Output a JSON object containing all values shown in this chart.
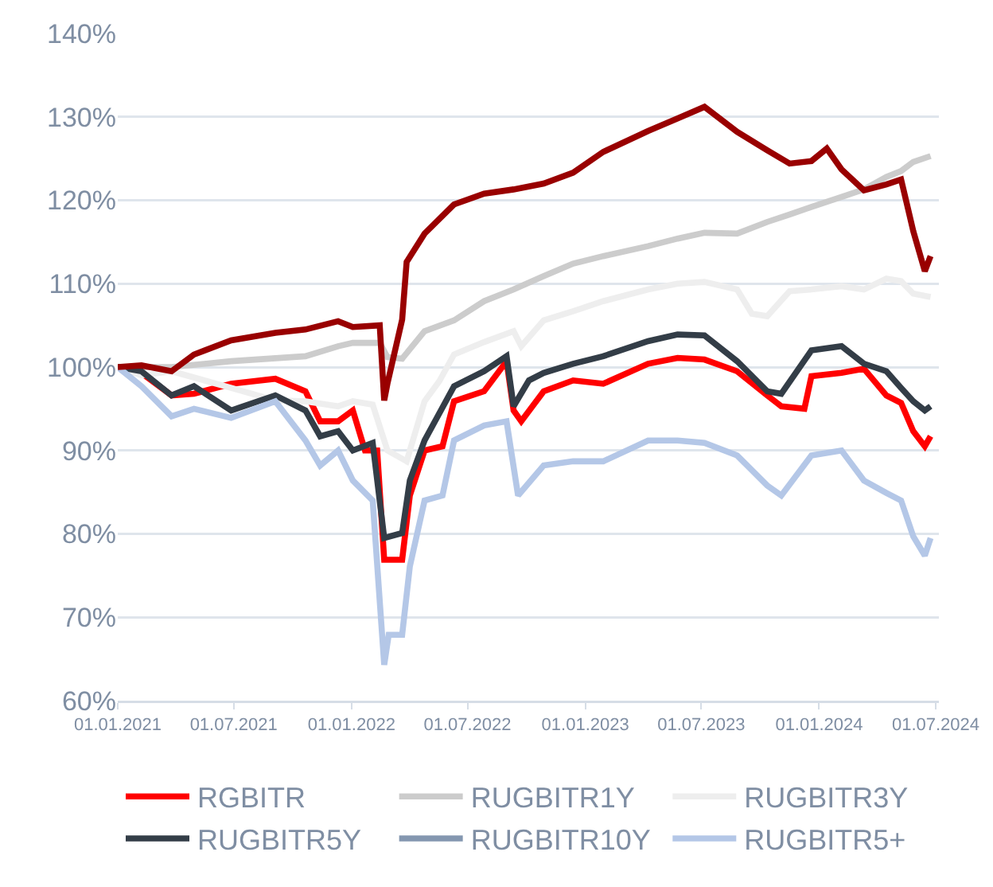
{
  "chart_data": {
    "type": "line",
    "xlim": [
      "2021-01-01",
      "2024-07-06"
    ],
    "xticks": [
      {
        "value": "2021-01-01",
        "label": "01.01.2021"
      },
      {
        "value": "2021-07-01",
        "label": "01.07.2021"
      },
      {
        "value": "2022-01-01",
        "label": "01.01.2022"
      },
      {
        "value": "2022-07-01",
        "label": "01.07.2022"
      },
      {
        "value": "2023-01-01",
        "label": "01.01.2023"
      },
      {
        "value": "2023-07-01",
        "label": "01.07.2023"
      },
      {
        "value": "2024-01-01",
        "label": "01.01.2024"
      },
      {
        "value": "2024-07-01",
        "label": "01.07.2024"
      }
    ],
    "ylim": [
      60,
      140
    ],
    "yticks": [
      {
        "value": 60,
        "label": "60%"
      },
      {
        "value": 70,
        "label": "70%"
      },
      {
        "value": 80,
        "label": "80%"
      },
      {
        "value": 90,
        "label": "90%"
      },
      {
        "value": 100,
        "label": "100%"
      },
      {
        "value": 110,
        "label": "110%"
      },
      {
        "value": 120,
        "label": "120%"
      },
      {
        "value": 130,
        "label": "130%"
      },
      {
        "value": 140,
        "label": "140%"
      }
    ],
    "grid": "y",
    "legend": "bottom",
    "marker": "none",
    "line_style": "solid",
    "series": [
      {
        "name": "RGBITR",
        "color": "#ff0000",
        "x": [
          "2021-01-01",
          "2021-02-07",
          "2021-03-26",
          "2021-04-30",
          "2021-06-27",
          "2021-09-04",
          "2021-10-21",
          "2021-11-13",
          "2021-12-11",
          "2022-01-03",
          "2022-01-22",
          "2022-02-10",
          "2022-02-21",
          "2022-03-21",
          "2022-04-02",
          "2022-04-25",
          "2022-05-23",
          "2022-06-10",
          "2022-07-27",
          "2022-08-31",
          "2022-09-11",
          "2022-09-23",
          "2022-10-28",
          "2022-12-13",
          "2023-01-29",
          "2023-04-09",
          "2023-05-25",
          "2023-07-06",
          "2023-08-26",
          "2023-10-12",
          "2023-11-03",
          "2023-12-09",
          "2023-12-20",
          "2024-02-05",
          "2024-03-11",
          "2024-04-15",
          "2024-05-08",
          "2024-05-27",
          "2024-06-14",
          "2024-06-23"
        ],
        "values": [
          100,
          99.3,
          96.6,
          96.8,
          98,
          98.6,
          97.1,
          93.5,
          93.5,
          94.8,
          90,
          90,
          76.9,
          76.9,
          84.6,
          90,
          90.5,
          95.9,
          97.1,
          100.7,
          94.8,
          93.5,
          97.1,
          98.4,
          98,
          100.4,
          101.1,
          100.9,
          99.5,
          96.6,
          95.3,
          95,
          98.9,
          99.3,
          99.8,
          96.6,
          95.7,
          92.3,
          90.5,
          91.7
        ]
      },
      {
        "name": "RUGBITR1Y",
        "color": "#cccccc",
        "x": [
          "2021-01-01",
          "2021-03-26",
          "2021-06-27",
          "2021-10-21",
          "2021-12-11",
          "2022-01-03",
          "2022-02-14",
          "2022-02-26",
          "2022-03-21",
          "2022-04-25",
          "2022-06-10",
          "2022-07-27",
          "2022-09-11",
          "2022-10-28",
          "2022-12-13",
          "2023-01-29",
          "2023-04-09",
          "2023-05-25",
          "2023-07-06",
          "2023-08-26",
          "2023-10-12",
          "2023-11-16",
          "2023-12-20",
          "2024-02-05",
          "2024-03-11",
          "2024-04-15",
          "2024-05-08",
          "2024-05-27",
          "2024-06-23"
        ],
        "values": [
          100,
          100,
          100.7,
          101.3,
          102.5,
          102.9,
          102.9,
          101.2,
          101,
          104.3,
          105.6,
          107.9,
          109.3,
          110.9,
          112.4,
          113.3,
          114.5,
          115.4,
          116.1,
          116,
          117.4,
          118.3,
          119.2,
          120.4,
          121.3,
          122.8,
          123.5,
          124.6,
          125.3
        ]
      },
      {
        "name": "RUGBITR3Y",
        "color": "#eeeeee",
        "x": [
          "2021-01-01",
          "2021-02-07",
          "2021-03-26",
          "2021-06-27",
          "2021-09-04",
          "2021-10-21",
          "2021-12-11",
          "2022-01-03",
          "2022-02-03",
          "2022-02-26",
          "2022-03-28",
          "2022-04-25",
          "2022-05-18",
          "2022-06-10",
          "2022-07-27",
          "2022-09-11",
          "2022-09-23",
          "2022-10-28",
          "2022-12-13",
          "2023-01-29",
          "2023-04-09",
          "2023-05-25",
          "2023-07-06",
          "2023-08-26",
          "2023-09-18",
          "2023-10-12",
          "2023-11-16",
          "2023-12-20",
          "2024-02-05",
          "2024-03-11",
          "2024-04-15",
          "2024-05-08",
          "2024-05-27",
          "2024-06-23"
        ],
        "values": [
          100,
          99,
          99.5,
          97.5,
          96,
          95.9,
          95.3,
          95.9,
          95.5,
          90,
          88.7,
          95.9,
          98.3,
          101.5,
          103,
          104.3,
          102.5,
          105.6,
          106.7,
          107.9,
          109.3,
          110,
          110.2,
          109.3,
          106.4,
          106.1,
          109.1,
          109.3,
          109.7,
          109.3,
          110.6,
          110.3,
          108.8,
          108.4
        ]
      },
      {
        "name": "RUGBITR5Y",
        "color": "#333d47",
        "x": [
          "2021-01-01",
          "2021-02-07",
          "2021-03-26",
          "2021-04-30",
          "2021-06-27",
          "2021-09-04",
          "2021-10-21",
          "2021-11-13",
          "2021-12-11",
          "2022-01-03",
          "2022-02-03",
          "2022-02-21",
          "2022-03-21",
          "2022-04-02",
          "2022-04-25",
          "2022-06-10",
          "2022-07-27",
          "2022-08-31",
          "2022-09-11",
          "2022-10-05",
          "2022-10-28",
          "2022-12-13",
          "2023-01-29",
          "2023-04-09",
          "2023-05-25",
          "2023-07-06",
          "2023-08-26",
          "2023-10-12",
          "2023-11-03",
          "2023-12-20",
          "2024-02-05",
          "2024-03-11",
          "2024-04-15",
          "2024-05-08",
          "2024-05-27",
          "2024-06-14",
          "2024-06-23"
        ],
        "values": [
          100,
          99.5,
          96.6,
          97.7,
          94.8,
          96.6,
          94.8,
          91.7,
          92.3,
          90,
          90.9,
          79.5,
          80.1,
          86.4,
          91.2,
          97.7,
          99.5,
          101.3,
          95.3,
          98.4,
          99.3,
          100.4,
          101.3,
          103.1,
          103.9,
          103.8,
          100.7,
          97.1,
          96.8,
          102,
          102.5,
          100.4,
          99.5,
          97.5,
          95.9,
          94.8,
          95.3
        ]
      },
      {
        "name": "RUGBITR10Y",
        "color": "#8497b0"
      },
      {
        "name": "RUGBITR5+",
        "color": "#b4c7e7",
        "x": [
          "2021-01-01",
          "2021-02-07",
          "2021-03-26",
          "2021-04-30",
          "2021-06-27",
          "2021-09-04",
          "2021-10-21",
          "2021-11-13",
          "2021-12-11",
          "2022-01-03",
          "2022-02-03",
          "2022-02-21",
          "2022-02-28",
          "2022-03-21",
          "2022-04-02",
          "2022-04-25",
          "2022-05-23",
          "2022-06-10",
          "2022-07-27",
          "2022-08-31",
          "2022-09-18",
          "2022-10-28",
          "2022-12-13",
          "2023-01-29",
          "2023-04-09",
          "2023-05-25",
          "2023-07-06",
          "2023-08-26",
          "2023-10-12",
          "2023-11-03",
          "2023-12-20",
          "2024-02-05",
          "2024-03-11",
          "2024-04-15",
          "2024-05-08",
          "2024-05-27",
          "2024-06-14",
          "2024-06-23"
        ],
        "values": [
          100,
          97.7,
          94.1,
          95,
          93.9,
          95.9,
          91.2,
          88.2,
          90,
          86.4,
          84,
          64.3,
          67.9,
          67.9,
          76.1,
          84,
          84.6,
          91.2,
          93,
          93.5,
          84.6,
          88.2,
          88.7,
          88.7,
          91.2,
          91.2,
          90.9,
          89.4,
          85.8,
          84.6,
          89.4,
          90,
          86.4,
          84.9,
          84,
          79.7,
          77.4,
          79.5
        ]
      },
      {
        "color": "#990000",
        "x": [
          "2021-01-01",
          "2021-02-07",
          "2021-03-26",
          "2021-04-30",
          "2021-06-27",
          "2021-09-04",
          "2021-10-21",
          "2021-12-11",
          "2022-01-03",
          "2022-02-14",
          "2022-02-21",
          "2022-02-26",
          "2022-03-21",
          "2022-03-28",
          "2022-04-25",
          "2022-06-10",
          "2022-07-27",
          "2022-09-11",
          "2022-10-28",
          "2022-12-13",
          "2023-01-29",
          "2023-04-09",
          "2023-05-25",
          "2023-07-06",
          "2023-08-26",
          "2023-10-12",
          "2023-11-16",
          "2023-12-20",
          "2024-01-13",
          "2024-02-05",
          "2024-03-11",
          "2024-04-15",
          "2024-05-08",
          "2024-05-27",
          "2024-06-14",
          "2024-06-23"
        ],
        "values": [
          100,
          100.2,
          99.5,
          101.5,
          103.2,
          104.1,
          104.5,
          105.5,
          104.8,
          105,
          96,
          98,
          105.7,
          112.6,
          116,
          119.5,
          120.8,
          121.3,
          122,
          123.3,
          125.8,
          128.3,
          129.8,
          131.2,
          128.2,
          126,
          124.4,
          124.7,
          126.2,
          123.7,
          121.2,
          121.9,
          122.5,
          116.3,
          111.5,
          113.3
        ]
      }
    ]
  }
}
